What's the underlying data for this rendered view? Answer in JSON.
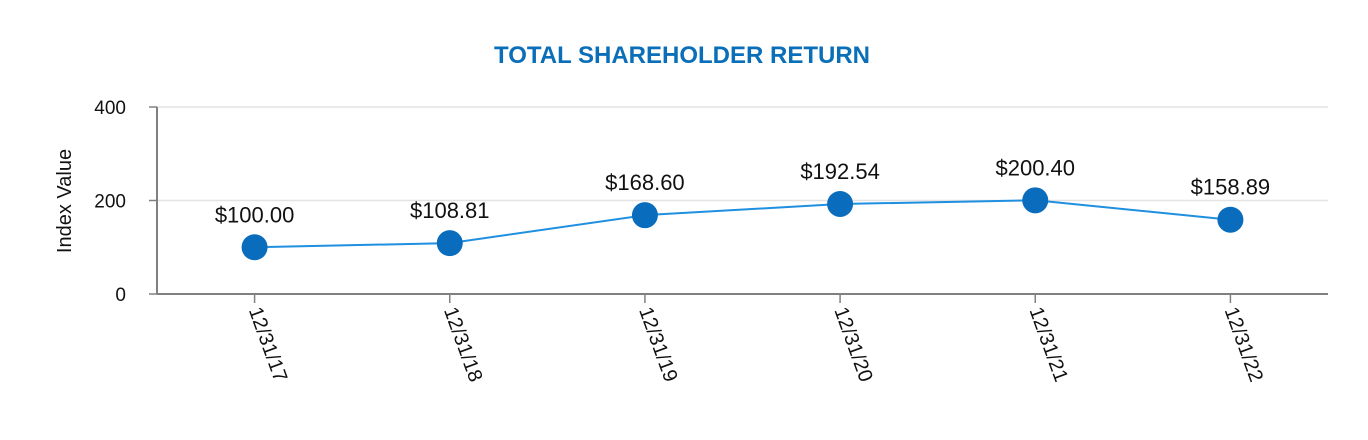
{
  "chart_data": {
    "type": "line",
    "title": "TOTAL SHAREHOLDER RETURN",
    "xlabel": "",
    "ylabel": "Index Value",
    "ylim": [
      0,
      400
    ],
    "yticks": [
      0,
      200,
      400
    ],
    "ytick_labels": [
      "0",
      "200",
      "400"
    ],
    "grid": true,
    "legend": null,
    "categories": [
      "12/31/17",
      "12/31/18",
      "12/31/19",
      "12/31/20",
      "12/31/21",
      "12/31/22"
    ],
    "series": [
      {
        "name": "Index Value",
        "values": [
          100.0,
          108.81,
          168.6,
          192.54,
          200.4,
          158.89
        ],
        "data_labels": [
          "$100.00",
          "$108.81",
          "$168.60",
          "$192.54",
          "$200.40",
          "$158.89"
        ]
      }
    ],
    "colors": {
      "title": "#0a6fb8",
      "line": "#1f8fe0",
      "marker": "#0a6cbd",
      "grid": "#e3e3e3",
      "axis": "#808080"
    }
  }
}
